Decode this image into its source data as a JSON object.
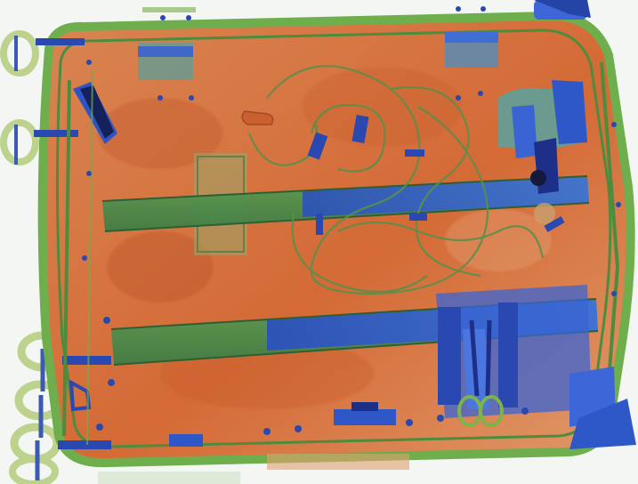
{
  "image": {
    "kind": "x-ray baggage scan",
    "colors": {
      "background": "#f4f6f4",
      "organic_orange": "#d9743f",
      "organic_orange_dark": "#b9542a",
      "mixed_green": "#7cb44a",
      "mixed_green_dark": "#4e8c3d",
      "metal_blue": "#2e58c8",
      "metal_blue_dark": "#1e2f8a",
      "dense_black": "#151a3a"
    }
  }
}
